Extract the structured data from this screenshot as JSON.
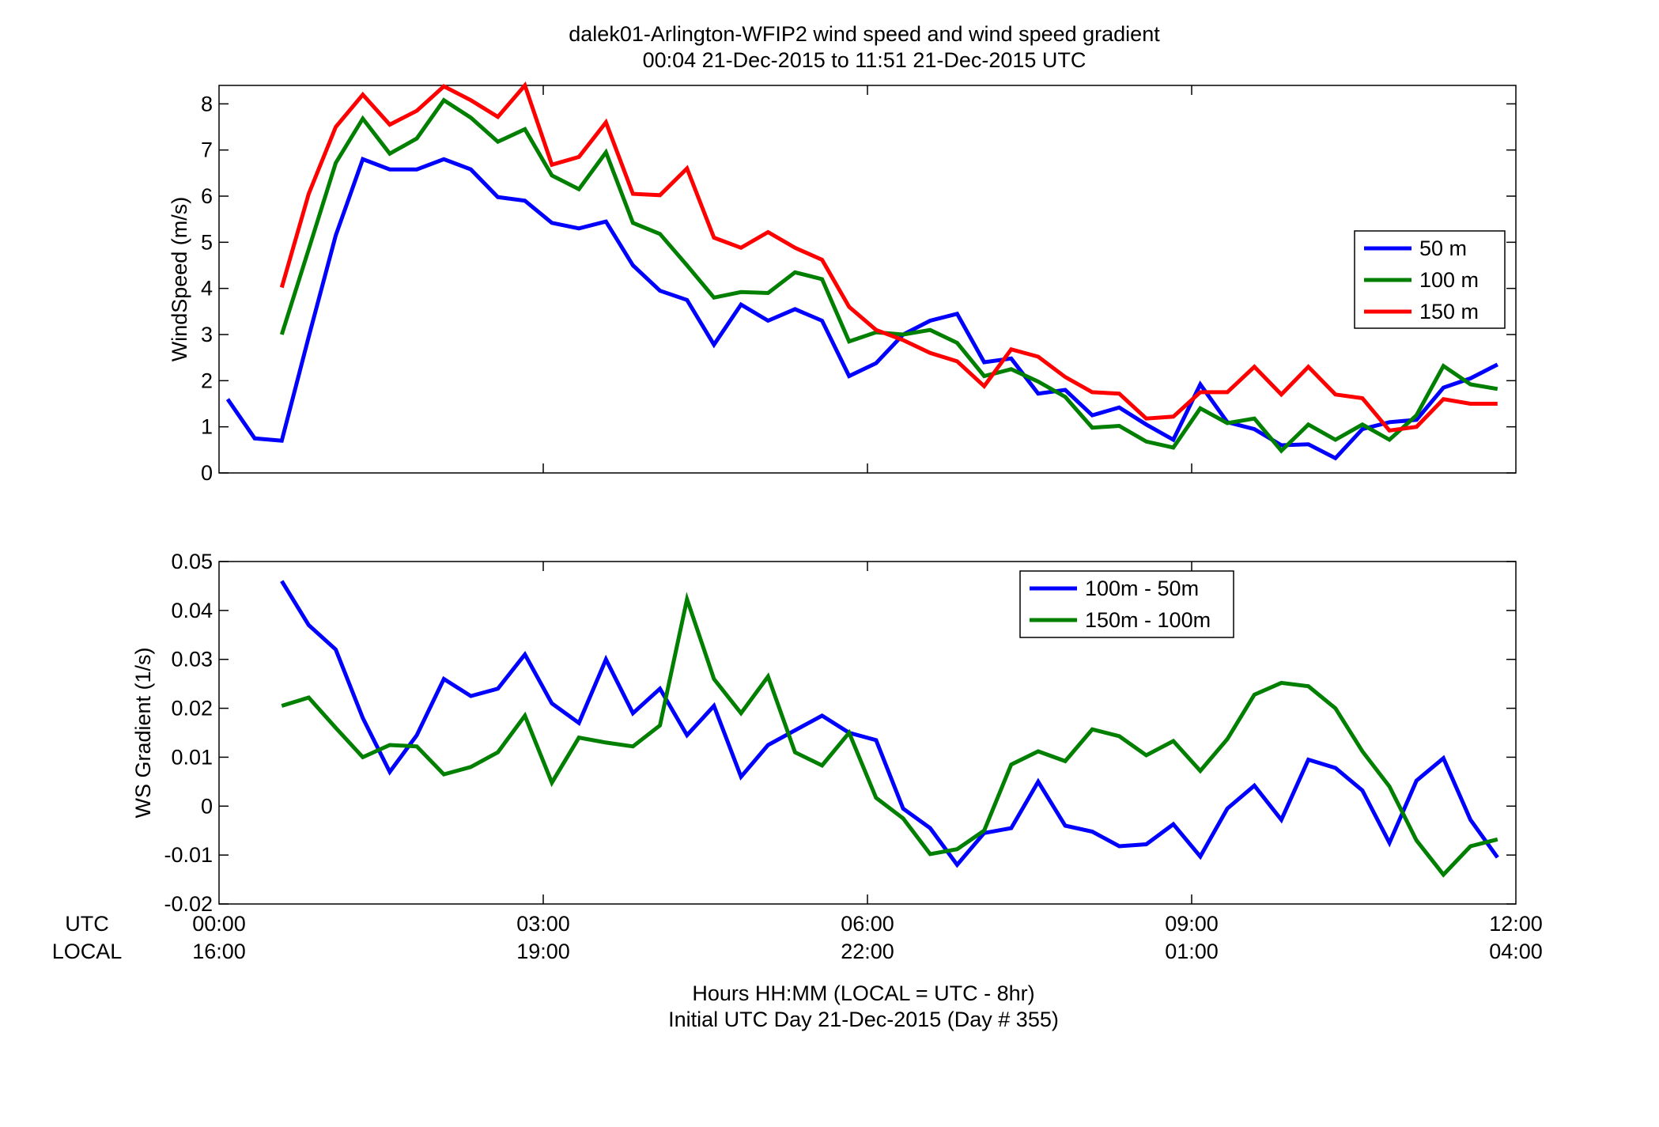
{
  "figure": {
    "title_line1": "dalek01-Arlington-WFIP2  wind speed and wind speed gradient",
    "title_line2": "00:04 21-Dec-2015 to 11:51 21-Dec-2015  UTC",
    "xlabel_line1": "Hours HH:MM  (LOCAL = UTC - 8hr)",
    "xlabel_line2": "Initial UTC Day 21-Dec-2015 (Day # 355)",
    "utc_row_label": "UTC",
    "local_row_label": "LOCAL"
  },
  "chart_data": [
    {
      "type": "line",
      "ylabel": "WindSpeed (m/s)",
      "xlim": [
        0,
        12
      ],
      "ylim": [
        0,
        8.4
      ],
      "yticks": [
        "0",
        "1",
        "2",
        "3",
        "4",
        "5",
        "6",
        "7",
        "8"
      ],
      "legend_position": "right",
      "series": [
        {
          "name": "50 m",
          "color": "#0000ff",
          "x": [
            0.08,
            0.33,
            0.58,
            0.83,
            1.08,
            1.33,
            1.58,
            1.83,
            2.08,
            2.33,
            2.58,
            2.83,
            3.08,
            3.33,
            3.58,
            3.83,
            4.08,
            4.33,
            4.58,
            4.83,
            5.08,
            5.33,
            5.58,
            5.83,
            6.08,
            6.33,
            6.58,
            6.83,
            7.08,
            7.33,
            7.58,
            7.83,
            8.08,
            8.33,
            8.58,
            8.83,
            9.08,
            9.33,
            9.58,
            9.83,
            10.08,
            10.33,
            10.58,
            10.83,
            11.08,
            11.33,
            11.58,
            11.83
          ],
          "values": [
            1.6,
            0.75,
            0.7,
            2.95,
            5.15,
            6.8,
            6.58,
            6.58,
            6.8,
            6.58,
            5.98,
            5.9,
            5.42,
            5.3,
            5.45,
            4.5,
            3.95,
            3.75,
            2.78,
            3.65,
            3.3,
            3.55,
            3.3,
            2.1,
            2.38,
            3.0,
            3.3,
            3.45,
            2.4,
            2.48,
            1.72,
            1.8,
            1.25,
            1.42,
            1.05,
            0.72,
            1.92,
            1.1,
            0.95,
            0.6,
            0.62,
            0.32,
            0.95,
            1.1,
            1.15,
            1.85,
            2.05,
            2.35
          ]
        },
        {
          "name": "100 m",
          "color": "#007f00",
          "x": [
            0.58,
            0.83,
            1.08,
            1.33,
            1.58,
            1.83,
            2.08,
            2.33,
            2.58,
            2.83,
            3.08,
            3.33,
            3.58,
            3.83,
            4.08,
            4.33,
            4.58,
            4.83,
            5.08,
            5.33,
            5.58,
            5.83,
            6.08,
            6.33,
            6.58,
            6.83,
            7.08,
            7.33,
            7.58,
            7.83,
            8.08,
            8.33,
            8.58,
            8.83,
            9.08,
            9.33,
            9.58,
            9.83,
            10.08,
            10.33,
            10.58,
            10.83,
            11.08,
            11.33,
            11.58,
            11.83
          ],
          "values": [
            3.0,
            4.85,
            6.72,
            7.68,
            6.92,
            7.25,
            8.08,
            7.7,
            7.18,
            7.45,
            6.45,
            6.15,
            6.95,
            5.42,
            5.18,
            4.5,
            3.8,
            3.92,
            3.9,
            4.35,
            4.2,
            2.85,
            3.05,
            3.0,
            3.1,
            2.82,
            2.1,
            2.25,
            1.98,
            1.65,
            0.98,
            1.02,
            0.68,
            0.55,
            1.4,
            1.08,
            1.18,
            0.48,
            1.05,
            0.72,
            1.05,
            0.72,
            1.25,
            2.32,
            1.92,
            1.82
          ]
        },
        {
          "name": "150 m",
          "color": "#ff0000",
          "x": [
            0.58,
            0.83,
            1.08,
            1.33,
            1.58,
            1.83,
            2.08,
            2.33,
            2.58,
            2.83,
            3.08,
            3.33,
            3.58,
            3.83,
            4.08,
            4.33,
            4.58,
            4.83,
            5.08,
            5.33,
            5.58,
            5.83,
            6.08,
            6.33,
            6.58,
            6.83,
            7.08,
            7.33,
            7.58,
            7.83,
            8.08,
            8.33,
            8.58,
            8.83,
            9.08,
            9.33,
            9.58,
            9.83,
            10.08,
            10.33,
            10.58,
            10.83,
            11.08,
            11.33,
            11.58,
            11.83
          ],
          "values": [
            4.02,
            6.05,
            7.5,
            8.2,
            7.55,
            7.85,
            8.38,
            8.08,
            7.72,
            8.4,
            6.68,
            6.85,
            7.6,
            6.05,
            6.02,
            6.6,
            5.1,
            4.88,
            5.22,
            4.88,
            4.62,
            3.6,
            3.1,
            2.88,
            2.6,
            2.42,
            1.88,
            2.68,
            2.52,
            2.08,
            1.75,
            1.72,
            1.18,
            1.22,
            1.75,
            1.75,
            2.3,
            1.7,
            2.3,
            1.7,
            1.62,
            0.92,
            1.0,
            1.6,
            1.5,
            1.5
          ]
        }
      ]
    },
    {
      "type": "line",
      "ylabel": "WS Gradient (1/s)",
      "xlim": [
        0,
        12
      ],
      "ylim": [
        -0.02,
        0.05
      ],
      "yticks": [
        "-0.02",
        "-0.01",
        "0",
        "0.01",
        "0.02",
        "0.03",
        "0.04",
        "0.05"
      ],
      "xticks_utc": [
        "00:00",
        "03:00",
        "06:00",
        "09:00",
        "12:00"
      ],
      "xticks_local": [
        "16:00",
        "19:00",
        "22:00",
        "01:00",
        "04:00"
      ],
      "legend_position": "top-right",
      "series": [
        {
          "name": "100m - 50m",
          "color": "#0000ff",
          "x": [
            0.58,
            0.83,
            1.08,
            1.33,
            1.58,
            1.83,
            2.08,
            2.33,
            2.58,
            2.83,
            3.08,
            3.33,
            3.58,
            3.83,
            4.08,
            4.33,
            4.58,
            4.83,
            5.08,
            5.33,
            5.58,
            5.83,
            6.08,
            6.33,
            6.58,
            6.83,
            7.08,
            7.33,
            7.58,
            7.83,
            8.08,
            8.33,
            8.58,
            8.83,
            9.08,
            9.33,
            9.58,
            9.83,
            10.08,
            10.33,
            10.58,
            10.83,
            11.08,
            11.33,
            11.58,
            11.83
          ],
          "values": [
            0.046,
            0.037,
            0.032,
            0.018,
            0.007,
            0.0145,
            0.026,
            0.0225,
            0.024,
            0.031,
            0.021,
            0.017,
            0.03,
            0.019,
            0.024,
            0.0145,
            0.0205,
            0.006,
            0.0125,
            0.0155,
            0.0185,
            0.015,
            0.0135,
            -0.0005,
            -0.0045,
            -0.012,
            -0.0055,
            -0.0045,
            0.005,
            -0.004,
            -0.0052,
            -0.0082,
            -0.0078,
            -0.0037,
            -0.0103,
            -0.0005,
            0.0042,
            -0.0028,
            0.0095,
            0.0078,
            0.0032,
            -0.0075,
            0.0052,
            0.0098,
            -0.0028,
            -0.0105
          ]
        },
        {
          "name": "150m - 100m",
          "color": "#007f00",
          "x": [
            0.58,
            0.83,
            1.08,
            1.33,
            1.58,
            1.83,
            2.08,
            2.33,
            2.58,
            2.83,
            3.08,
            3.33,
            3.58,
            3.83,
            4.08,
            4.33,
            4.58,
            4.83,
            5.08,
            5.33,
            5.58,
            5.83,
            6.08,
            6.33,
            6.58,
            6.83,
            7.08,
            7.33,
            7.58,
            7.83,
            8.08,
            8.33,
            8.58,
            8.83,
            9.08,
            9.33,
            9.58,
            9.83,
            10.08,
            10.33,
            10.58,
            10.83,
            11.08,
            11.33,
            11.58,
            11.83
          ],
          "values": [
            0.0205,
            0.0222,
            0.016,
            0.01,
            0.0125,
            0.0122,
            0.0065,
            0.008,
            0.011,
            0.0185,
            0.0048,
            0.014,
            0.013,
            0.0122,
            0.0165,
            0.0423,
            0.026,
            0.019,
            0.0265,
            0.011,
            0.0083,
            0.015,
            0.0017,
            -0.0025,
            -0.0098,
            -0.0088,
            -0.005,
            0.0085,
            0.0112,
            0.0092,
            0.0157,
            0.0143,
            0.0104,
            0.0133,
            0.0072,
            0.0137,
            0.0228,
            0.0252,
            0.0245,
            0.02,
            0.0112,
            0.004,
            -0.007,
            -0.014,
            -0.0082,
            -0.0068
          ]
        }
      ]
    }
  ]
}
